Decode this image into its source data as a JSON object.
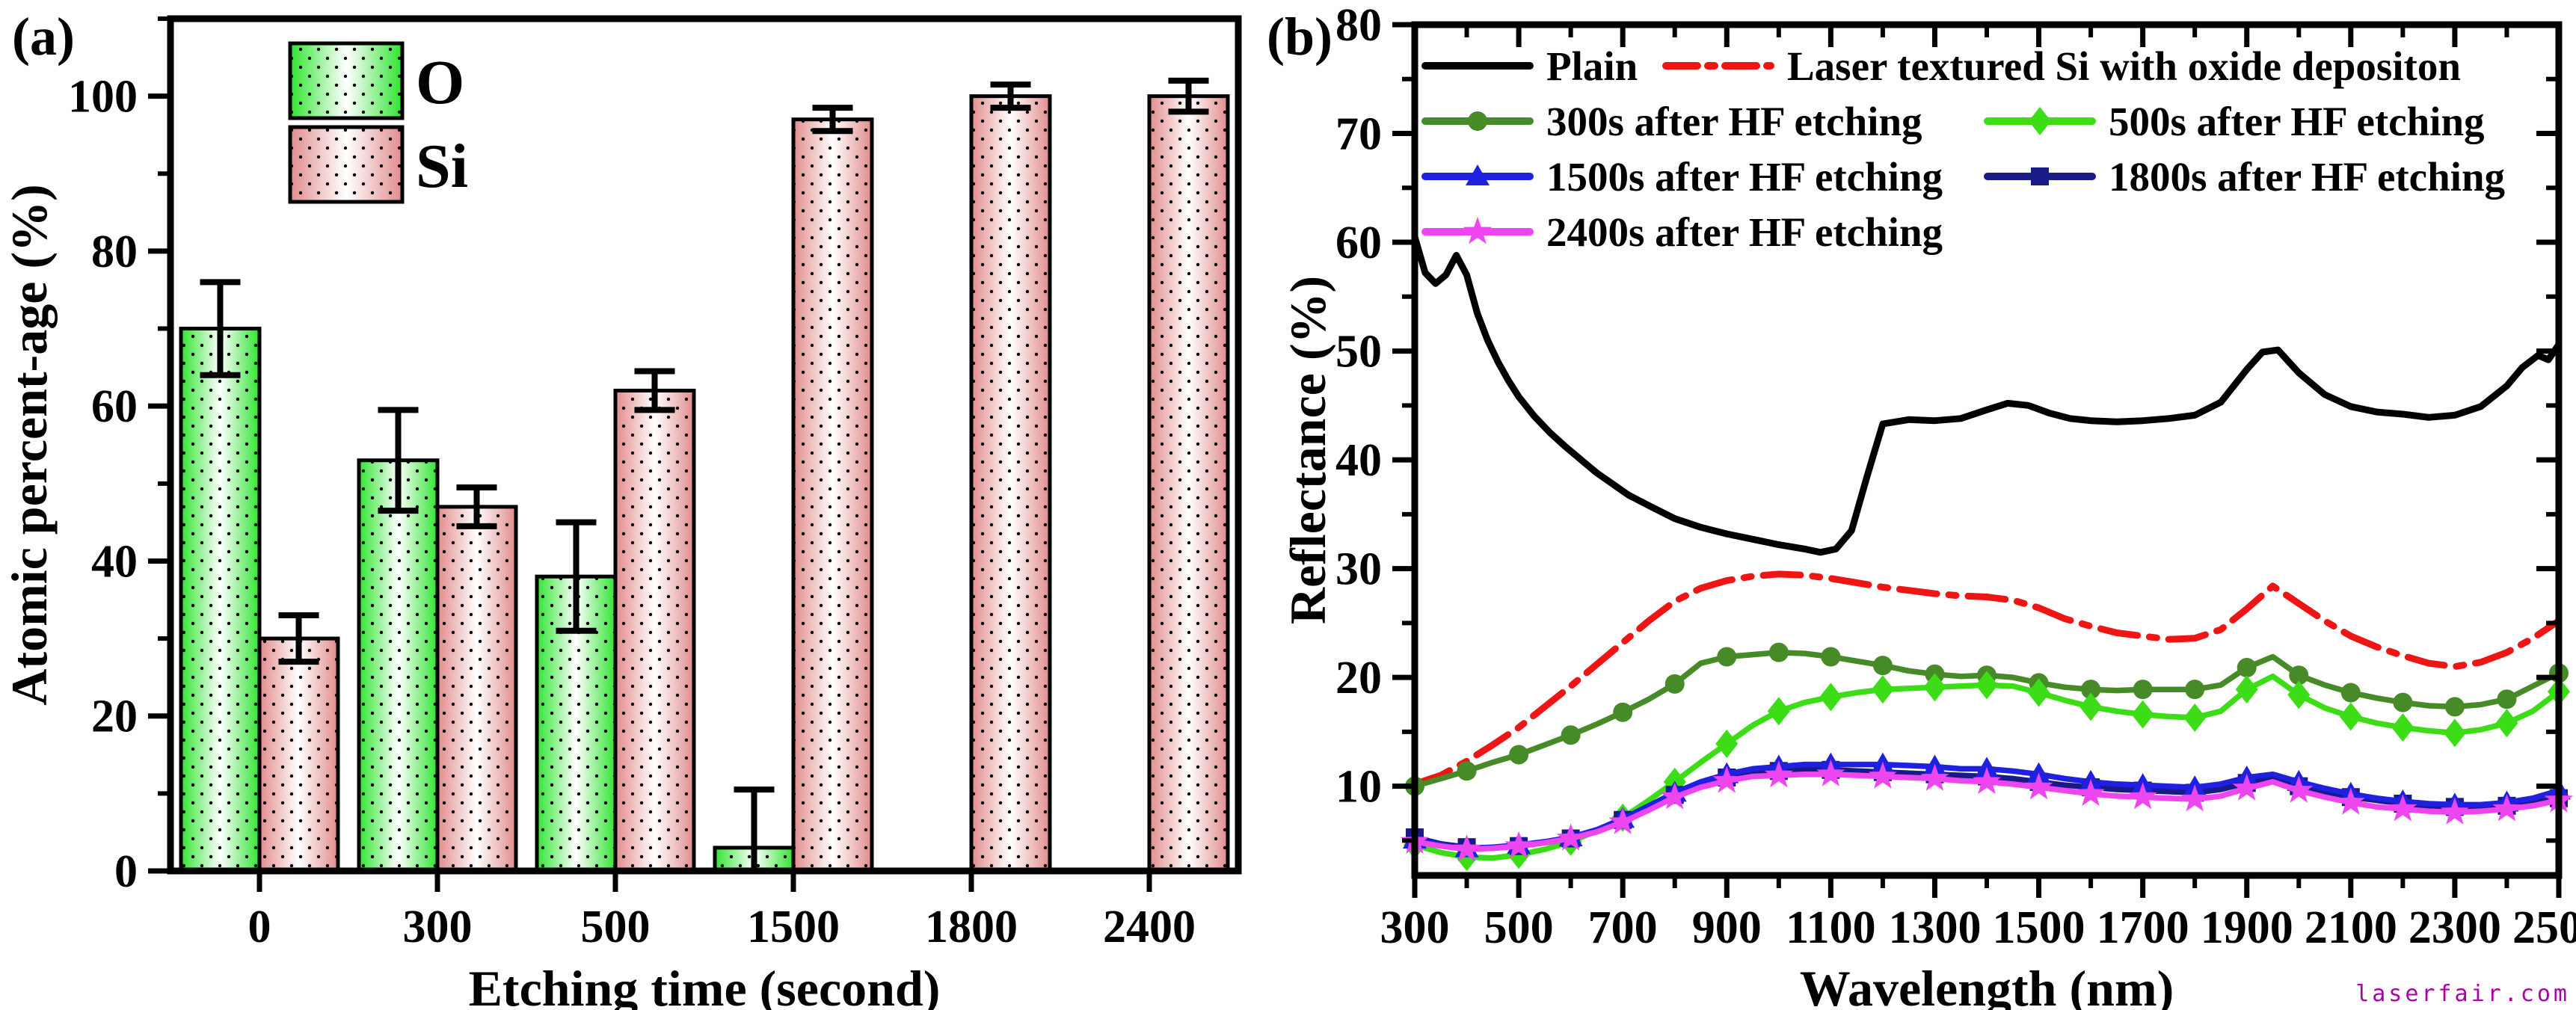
{
  "figure": {
    "panel_a_label": "(a)",
    "panel_b_label": "(b)",
    "watermark": "laserfair.com",
    "watermark_color": "#aa00aa",
    "background": "#ffffff"
  },
  "chart_data": [
    {
      "id": "a",
      "type": "bar",
      "title": "",
      "xlabel": "Etching time (second)",
      "ylabel": "Atomic percent-age (%)",
      "categories": [
        "0",
        "300",
        "500",
        "1500",
        "1800",
        "2400"
      ],
      "ylim": [
        0,
        110
      ],
      "yticks": [
        0,
        20,
        40,
        60,
        80,
        100
      ],
      "yminor": [
        10,
        30,
        50,
        70,
        90,
        110
      ],
      "grid": false,
      "legend_position": "top-left-inside",
      "series": [
        {
          "name": "O",
          "edge_color": "#30e431",
          "center_color": "#ffffff",
          "values": [
            70,
            53,
            38,
            3,
            null,
            null
          ],
          "errors": [
            6,
            6.5,
            7,
            7.5,
            null,
            null
          ]
        },
        {
          "name": "Si",
          "edge_color": "#e18b8b",
          "center_color": "#ffffff",
          "values": [
            30,
            47,
            62,
            97,
            100,
            100
          ],
          "errors": [
            3,
            2.5,
            2.5,
            1.5,
            1.5,
            2
          ]
        }
      ]
    },
    {
      "id": "b",
      "type": "line",
      "title": "",
      "xlabel": "Wavelength (nm)",
      "ylabel": "Reflectance (%)",
      "xlim": [
        300,
        2500
      ],
      "ylim": [
        2,
        80
      ],
      "xticks": [
        300,
        500,
        700,
        900,
        1100,
        1300,
        1500,
        1700,
        1900,
        2100,
        2300,
        2500
      ],
      "xminor_step": 100,
      "yticks": [
        10,
        20,
        30,
        40,
        50,
        60,
        70,
        80
      ],
      "yminor": [
        5,
        15,
        25,
        35,
        45,
        55,
        65,
        75
      ],
      "grid": false,
      "legend_position": "top-inside-two-columns",
      "x_grid": [
        300,
        350,
        400,
        450,
        500,
        550,
        600,
        650,
        700,
        750,
        800,
        850,
        900,
        950,
        1000,
        1050,
        1100,
        1150,
        1200,
        1250,
        1300,
        1350,
        1400,
        1450,
        1500,
        1550,
        1600,
        1650,
        1700,
        1750,
        1800,
        1850,
        1900,
        1950,
        2000,
        2050,
        2100,
        2150,
        2200,
        2250,
        2300,
        2350,
        2400,
        2450,
        2500
      ],
      "series": [
        {
          "name": "Laser textured Si with oxide depositon",
          "color": "#ee1515",
          "marker": "none",
          "dash": "dashdot",
          "width": 9,
          "legend_row": 0,
          "legend_col": 1,
          "y": [
            10.2,
            11.0,
            12.3,
            13.8,
            15.4,
            17.3,
            19.2,
            21.2,
            23.2,
            25.2,
            27.0,
            28.2,
            28.9,
            29.3,
            29.5,
            29.4,
            29.1,
            28.7,
            28.3,
            28.0,
            27.7,
            27.5,
            27.4,
            27.1,
            26.4,
            25.4,
            24.7,
            24.1,
            23.8,
            23.5,
            23.6,
            24.4,
            26.3,
            28.4,
            26.8,
            25.2,
            23.8,
            22.8,
            22.0,
            21.3,
            21.0,
            21.4,
            22.3,
            23.6,
            25.2
          ]
        },
        {
          "name": "300s after HF etching",
          "color": "#478a28",
          "marker": "circle",
          "dash": "solid",
          "width": 7.5,
          "legend_row": 1,
          "legend_col": 0,
          "y": [
            10.0,
            10.7,
            11.4,
            12.2,
            12.9,
            13.8,
            14.7,
            15.7,
            16.8,
            18.0,
            19.4,
            21.3,
            21.9,
            22.1,
            22.3,
            22.2,
            21.9,
            21.5,
            21.1,
            20.6,
            20.3,
            20.1,
            20.2,
            20.0,
            19.5,
            19.1,
            18.9,
            18.8,
            18.9,
            18.9,
            18.9,
            19.3,
            20.9,
            21.9,
            20.2,
            19.3,
            18.6,
            18.1,
            17.7,
            17.4,
            17.3,
            17.5,
            18.0,
            19.2,
            20.4
          ]
        },
        {
          "name": "500s after HF etching",
          "color": "#3cdd17",
          "marker": "diamond",
          "dash": "solid",
          "width": 7.5,
          "legend_row": 1,
          "legend_col": 1,
          "y": [
            4.6,
            3.9,
            3.5,
            3.4,
            3.7,
            4.2,
            4.9,
            5.9,
            7.1,
            8.7,
            10.4,
            12.2,
            13.9,
            15.6,
            16.9,
            17.7,
            18.2,
            18.6,
            18.9,
            19.0,
            19.1,
            19.2,
            19.3,
            19.2,
            18.6,
            17.9,
            17.3,
            16.9,
            16.6,
            16.4,
            16.3,
            16.9,
            18.9,
            20.1,
            18.4,
            17.2,
            16.4,
            15.8,
            15.4,
            15.1,
            14.9,
            15.2,
            15.8,
            16.9,
            18.7
          ]
        },
        {
          "name": "1800s after HF etching",
          "color": "#191987",
          "marker": "square",
          "dash": "solid",
          "width": 7.5,
          "legend_row": 2,
          "legend_col": 1,
          "y": [
            5.3,
            4.7,
            4.4,
            4.3,
            4.5,
            4.8,
            5.2,
            5.9,
            6.9,
            8.0,
            9.2,
            10.1,
            10.8,
            11.2,
            11.4,
            11.5,
            11.5,
            11.4,
            11.3,
            11.2,
            11.1,
            11.0,
            10.9,
            10.7,
            10.4,
            10.1,
            9.9,
            9.7,
            9.6,
            9.5,
            9.4,
            9.7,
            10.3,
            10.7,
            10.0,
            9.4,
            9.0,
            8.7,
            8.4,
            8.2,
            8.1,
            8.1,
            8.2,
            8.5,
            8.9
          ]
        },
        {
          "name": "1500s after HF etching",
          "color": "#2020e0",
          "marker": "triangle",
          "dash": "solid",
          "width": 7.5,
          "legend_row": 2,
          "legend_col": 0,
          "y": [
            5.1,
            4.6,
            4.3,
            4.4,
            4.6,
            4.9,
            5.3,
            6.0,
            7.0,
            8.2,
            9.4,
            10.4,
            11.1,
            11.6,
            11.8,
            12.0,
            12.0,
            12.0,
            12.0,
            11.9,
            11.8,
            11.6,
            11.6,
            11.4,
            11.1,
            10.7,
            10.4,
            10.2,
            10.1,
            10.0,
            9.9,
            10.2,
            10.8,
            11.1,
            10.4,
            9.8,
            9.3,
            8.9,
            8.6,
            8.4,
            8.3,
            8.3,
            8.5,
            8.9,
            9.6
          ]
        },
        {
          "name": "2400s after HF etching",
          "color": "#ee46ee",
          "marker": "star",
          "dash": "solid",
          "width": 7.5,
          "legend_row": 3,
          "legend_col": 0,
          "y": [
            4.9,
            4.5,
            4.2,
            4.3,
            4.5,
            4.8,
            5.2,
            5.8,
            6.7,
            7.8,
            9.0,
            9.9,
            10.5,
            10.9,
            11.0,
            11.1,
            11.1,
            11.0,
            10.9,
            10.8,
            10.7,
            10.5,
            10.4,
            10.2,
            9.9,
            9.6,
            9.3,
            9.1,
            9.0,
            8.9,
            8.8,
            9.1,
            9.8,
            10.4,
            9.6,
            9.0,
            8.5,
            8.1,
            7.9,
            7.7,
            7.6,
            7.7,
            7.9,
            8.2,
            8.7
          ]
        },
        {
          "name": "Plain",
          "color": "#000000",
          "marker": "none",
          "dash": "solid",
          "width": 9,
          "legend_row": 0,
          "legend_col": 0,
          "x": [
            300,
            320,
            340,
            360,
            380,
            400,
            420,
            440,
            460,
            480,
            500,
            530,
            560,
            590,
            620,
            650,
            680,
            710,
            750,
            800,
            850,
            900,
            950,
            1000,
            1050,
            1080,
            1110,
            1140,
            1170,
            1200,
            1250,
            1300,
            1350,
            1400,
            1440,
            1480,
            1520,
            1560,
            1600,
            1650,
            1700,
            1750,
            1800,
            1850,
            1900,
            1930,
            1960,
            2000,
            2050,
            2100,
            2150,
            2200,
            2250,
            2300,
            2350,
            2400,
            2430,
            2460,
            2480,
            2500
          ],
          "y": [
            60.5,
            57.2,
            56.2,
            57.0,
            58.8,
            57.0,
            53.5,
            51.0,
            49.0,
            47.3,
            45.8,
            44.0,
            42.5,
            41.2,
            40.0,
            38.8,
            37.8,
            36.8,
            35.8,
            34.6,
            33.8,
            33.2,
            32.7,
            32.2,
            31.8,
            31.5,
            31.8,
            33.5,
            38.5,
            43.3,
            43.7,
            43.6,
            43.8,
            44.6,
            45.2,
            45.0,
            44.3,
            43.8,
            43.6,
            43.5,
            43.6,
            43.8,
            44.1,
            45.3,
            48.3,
            49.9,
            50.1,
            48.0,
            46.0,
            44.9,
            44.4,
            44.2,
            43.9,
            44.1,
            44.9,
            46.8,
            48.5,
            49.6,
            49.2,
            50.6
          ]
        }
      ]
    }
  ]
}
